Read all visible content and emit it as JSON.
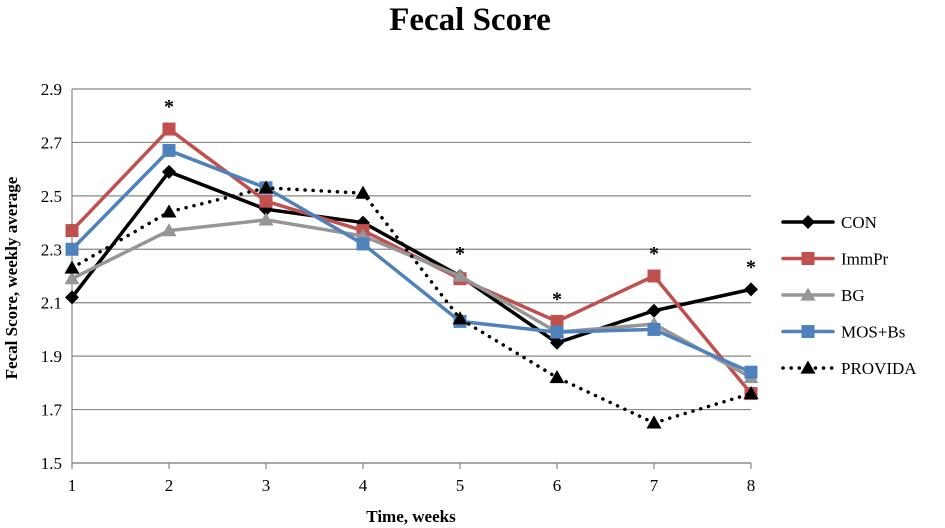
{
  "chart_data": {
    "type": "line",
    "title": "Fecal Score",
    "xlabel": "Time, weeks",
    "ylabel": "Fecal Score, weekly average",
    "x": [
      1,
      2,
      3,
      4,
      5,
      6,
      7,
      8
    ],
    "x_tick_labels": [
      "1",
      "2",
      "3",
      "4",
      "5",
      "6",
      "7",
      "8"
    ],
    "ylim": [
      1.5,
      2.9
    ],
    "y_ticks": [
      1.5,
      1.7,
      1.9,
      2.1,
      2.3,
      2.5,
      2.7,
      2.9
    ],
    "y_tick_labels": [
      "1.5",
      "1.7",
      "1.9",
      "2.1",
      "2.3",
      "2.5",
      "2.7",
      "2.9"
    ],
    "grid": "horizontal",
    "legend_position": "right",
    "series": [
      {
        "name": "CON",
        "color": "#000000",
        "marker": "diamond",
        "dash": "solid",
        "values": [
          2.12,
          2.59,
          2.45,
          2.4,
          2.2,
          1.95,
          2.07,
          2.15
        ]
      },
      {
        "name": "ImmPr",
        "color": "#c0504d",
        "marker": "square",
        "dash": "solid",
        "values": [
          2.37,
          2.75,
          2.48,
          2.37,
          2.19,
          2.03,
          2.2,
          1.76
        ]
      },
      {
        "name": "BG",
        "color": "#969696",
        "marker": "triangle",
        "dash": "solid",
        "values": [
          2.19,
          2.37,
          2.41,
          2.35,
          2.2,
          1.99,
          2.02,
          1.82
        ]
      },
      {
        "name": "MOS+Bs",
        "color": "#4f81bd",
        "marker": "square",
        "dash": "solid",
        "values": [
          2.3,
          2.67,
          2.53,
          2.32,
          2.03,
          1.99,
          2.0,
          1.84
        ]
      },
      {
        "name": "PROVIDA",
        "color": "#000000",
        "marker": "triangle",
        "dash": "dotted",
        "values": [
          2.23,
          2.44,
          2.53,
          2.51,
          2.04,
          1.82,
          1.65,
          1.76
        ]
      }
    ],
    "annotations": [
      {
        "x": 2,
        "text": "*"
      },
      {
        "x": 5,
        "text": "*"
      },
      {
        "x": 6,
        "text": "*"
      },
      {
        "x": 7,
        "text": "*"
      },
      {
        "x": 8,
        "text": "*"
      }
    ]
  }
}
